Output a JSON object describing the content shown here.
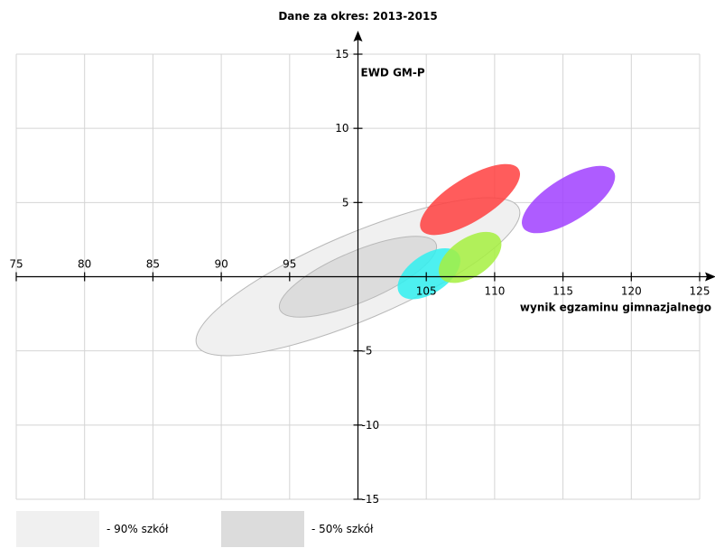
{
  "chart_data": {
    "type": "scatter",
    "title": "Dane za okres: 2013-2015",
    "xlabel": "wynik egzaminu gimnazjalnego",
    "ylabel": "EWD GM-P",
    "xlim": [
      75,
      125
    ],
    "ylim": [
      -15,
      15
    ],
    "x_ticks": [
      "75",
      "80",
      "85",
      "90",
      "95",
      "105",
      "110",
      "115",
      "120",
      "125"
    ],
    "y_ticks": [
      "15",
      "10",
      "5",
      "-5",
      "-10",
      "-15"
    ],
    "grid": true,
    "reference_regions": [
      {
        "label": "- 90% szkół",
        "color": "#f0f0f0",
        "center": [
          100,
          0
        ],
        "rx": 12.8,
        "ry": 2.9,
        "angle": 23
      },
      {
        "label": "- 50% szkół",
        "color": "#dcdcdc",
        "center": [
          100,
          0
        ],
        "rx": 6.2,
        "ry": 1.7,
        "angle": 23
      }
    ],
    "series": [
      {
        "color": "#ff4040",
        "center": [
          108.2,
          5.2
        ],
        "rx": 4.2,
        "ry": 1.45
      },
      {
        "color": "#a040ff",
        "center": [
          115.4,
          5.2
        ],
        "rx": 3.9,
        "ry": 1.45
      },
      {
        "color": "#30f0f0",
        "center": [
          105.2,
          0.2
        ],
        "rx": 2.6,
        "ry": 1.3
      },
      {
        "color": "#a6f040",
        "center": [
          108.2,
          1.3
        ],
        "rx": 2.6,
        "ry": 1.3
      }
    ]
  },
  "legend": {
    "items": [
      {
        "label": "- 90% szkół",
        "color": "#f0f0f0"
      },
      {
        "label": "- 50% szkół",
        "color": "#dcdcdc"
      }
    ]
  }
}
